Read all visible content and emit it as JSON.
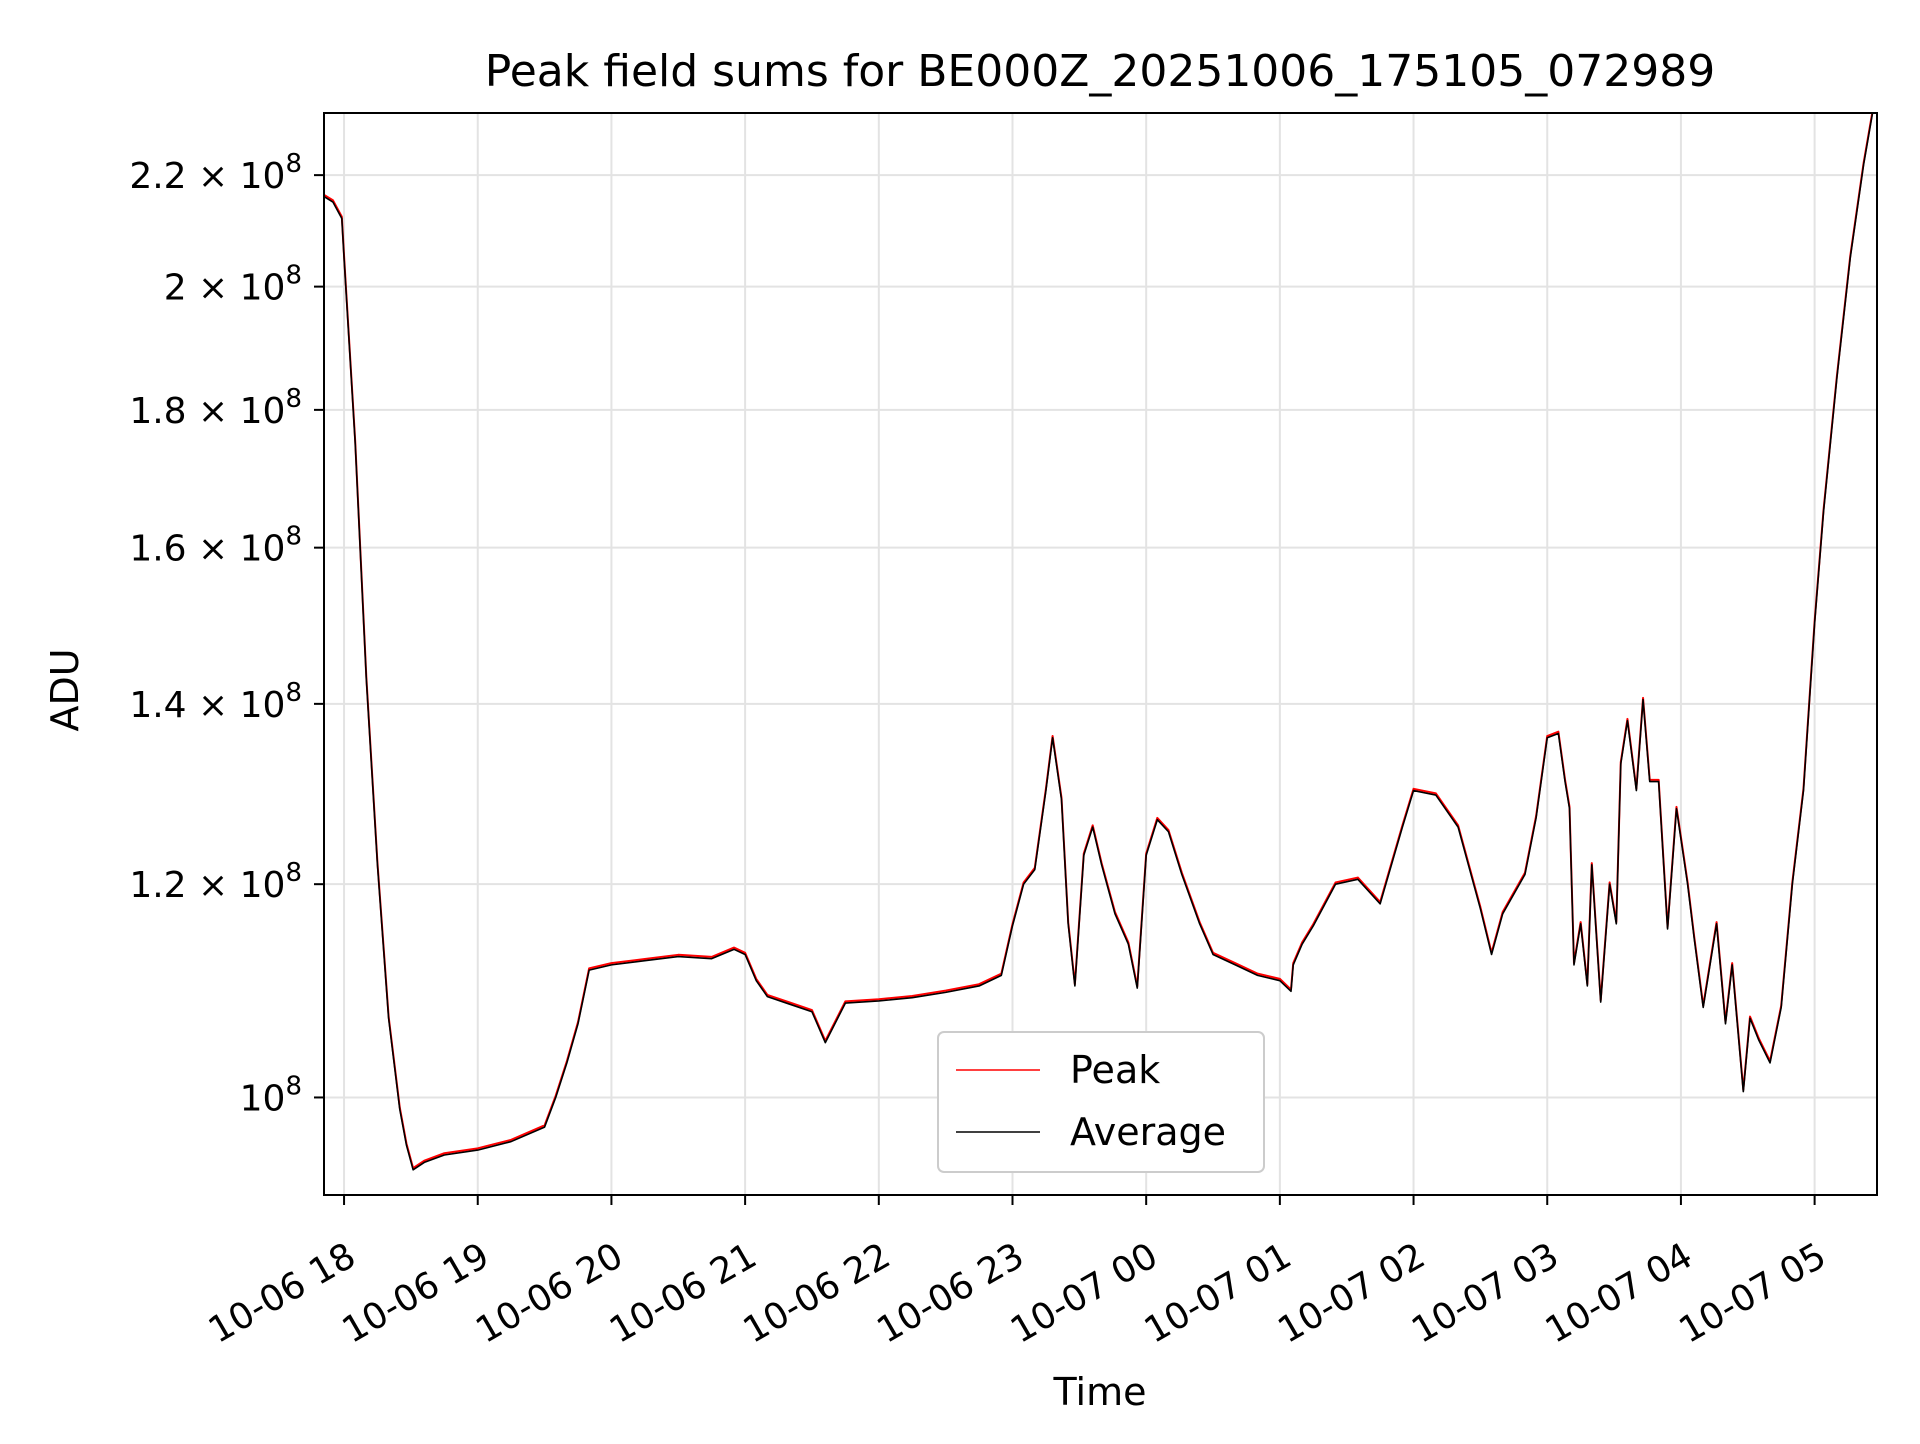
{
  "chart_data": {
    "type": "line",
    "title": "Peak field sums for BE000Z_20251006_175105_072989",
    "xlabel": "Time",
    "ylabel": "ADU",
    "y_scale": "log",
    "grid": true,
    "legend_placement": "lower center",
    "xlim": [
      "2025-10-06 17:51",
      "2025-10-07 05:28"
    ],
    "ylim": [
      92000000,
      232000000
    ],
    "x_ticks": [
      {
        "value": "2025-10-06 18:00",
        "label": "10-06 18"
      },
      {
        "value": "2025-10-06 19:00",
        "label": "10-06 19"
      },
      {
        "value": "2025-10-06 20:00",
        "label": "10-06 20"
      },
      {
        "value": "2025-10-06 21:00",
        "label": "10-06 21"
      },
      {
        "value": "2025-10-06 22:00",
        "label": "10-06 22"
      },
      {
        "value": "2025-10-06 23:00",
        "label": "10-06 23"
      },
      {
        "value": "2025-10-07 00:00",
        "label": "10-07 00"
      },
      {
        "value": "2025-10-07 01:00",
        "label": "10-07 01"
      },
      {
        "value": "2025-10-07 02:00",
        "label": "10-07 02"
      },
      {
        "value": "2025-10-07 03:00",
        "label": "10-07 03"
      },
      {
        "value": "2025-10-07 04:00",
        "label": "10-07 04"
      },
      {
        "value": "2025-10-07 05:00",
        "label": "10-07 05"
      }
    ],
    "y_ticks": [
      {
        "value": 100000000,
        "mant": "",
        "exp": "8",
        "label": "10^8"
      },
      {
        "value": 120000000,
        "mant": "1.2 × ",
        "exp": "8",
        "label": "1.2 × 10^8"
      },
      {
        "value": 140000000,
        "mant": "1.4 × ",
        "exp": "8",
        "label": "1.4 × 10^8"
      },
      {
        "value": 160000000,
        "mant": "1.6 × ",
        "exp": "8",
        "label": "1.6 × 10^8"
      },
      {
        "value": 180000000,
        "mant": "1.8 × ",
        "exp": "8",
        "label": "1.8 × 10^8"
      },
      {
        "value": 200000000,
        "mant": "2 × ",
        "exp": "8",
        "label": "2 × 10^8"
      },
      {
        "value": 220000000,
        "mant": "2.2 × ",
        "exp": "8",
        "label": "2.2 × 10^8"
      }
    ],
    "x": [
      "2025-10-06 17:51",
      "2025-10-06 17:55",
      "2025-10-06 17:59",
      "2025-10-06 18:00",
      "2025-10-06 18:05",
      "2025-10-06 18:10",
      "2025-10-06 18:15",
      "2025-10-06 18:20",
      "2025-10-06 18:25",
      "2025-10-06 18:28",
      "2025-10-06 18:31",
      "2025-10-06 18:36",
      "2025-10-06 18:45",
      "2025-10-06 19:00",
      "2025-10-06 19:15",
      "2025-10-06 19:30",
      "2025-10-06 19:35",
      "2025-10-06 19:40",
      "2025-10-06 19:45",
      "2025-10-06 19:50",
      "2025-10-06 20:00",
      "2025-10-06 20:15",
      "2025-10-06 20:30",
      "2025-10-06 20:45",
      "2025-10-06 20:55",
      "2025-10-06 21:00",
      "2025-10-06 21:05",
      "2025-10-06 21:10",
      "2025-10-06 21:20",
      "2025-10-06 21:30",
      "2025-10-06 21:36",
      "2025-10-06 21:45",
      "2025-10-06 22:00",
      "2025-10-06 22:15",
      "2025-10-06 22:30",
      "2025-10-06 22:45",
      "2025-10-06 22:55",
      "2025-10-06 23:00",
      "2025-10-06 23:05",
      "2025-10-06 23:10",
      "2025-10-06 23:15",
      "2025-10-06 23:18",
      "2025-10-06 23:22",
      "2025-10-06 23:25",
      "2025-10-06 23:28",
      "2025-10-06 23:32",
      "2025-10-06 23:36",
      "2025-10-06 23:40",
      "2025-10-06 23:46",
      "2025-10-06 23:52",
      "2025-10-06 23:56",
      "2025-10-07 00:00",
      "2025-10-07 00:05",
      "2025-10-07 00:10",
      "2025-10-07 00:16",
      "2025-10-07 00:24",
      "2025-10-07 00:30",
      "2025-10-07 00:40",
      "2025-10-07 00:50",
      "2025-10-07 01:00",
      "2025-10-07 01:05",
      "2025-10-07 01:06",
      "2025-10-07 01:10",
      "2025-10-07 01:15",
      "2025-10-07 01:25",
      "2025-10-07 01:35",
      "2025-10-07 01:45",
      "2025-10-07 01:55",
      "2025-10-07 02:00",
      "2025-10-07 02:10",
      "2025-10-07 02:20",
      "2025-10-07 02:30",
      "2025-10-07 02:35",
      "2025-10-07 02:40",
      "2025-10-07 02:50",
      "2025-10-07 02:55",
      "2025-10-07 03:00",
      "2025-10-07 03:05",
      "2025-10-07 03:08",
      "2025-10-07 03:10",
      "2025-10-07 03:12",
      "2025-10-07 03:15",
      "2025-10-07 03:18",
      "2025-10-07 03:20",
      "2025-10-07 03:24",
      "2025-10-07 03:28",
      "2025-10-07 03:31",
      "2025-10-07 03:33",
      "2025-10-07 03:36",
      "2025-10-07 03:40",
      "2025-10-07 03:43",
      "2025-10-07 03:46",
      "2025-10-07 03:50",
      "2025-10-07 03:54",
      "2025-10-07 03:58",
      "2025-10-07 04:03",
      "2025-10-07 04:06",
      "2025-10-07 04:10",
      "2025-10-07 04:16",
      "2025-10-07 04:20",
      "2025-10-07 04:23",
      "2025-10-07 04:28",
      "2025-10-07 04:31",
      "2025-10-07 04:35",
      "2025-10-07 04:40",
      "2025-10-07 04:45",
      "2025-10-07 04:50",
      "2025-10-07 04:55",
      "2025-10-07 05:00",
      "2025-10-07 05:04",
      "2025-10-07 05:10",
      "2025-10-07 05:16",
      "2025-10-07 05:22",
      "2025-10-07 05:26"
    ],
    "series": [
      {
        "name": "Peak",
        "color": "#ff0000",
        "offset_pct": 0.15
      },
      {
        "name": "Average",
        "color": "#000000",
        "values": [
          216000000,
          215000000,
          212000000,
          205000000,
          175000000,
          143000000,
          122000000,
          107000000,
          99000000,
          96000000,
          94000000,
          94600000,
          95200000,
          95600000,
          96300000,
          97500000,
          100000000,
          103000000,
          106500000,
          111500000,
          112000000,
          112400000,
          112800000,
          112600000,
          113500000,
          113000000,
          110500000,
          109000000,
          108300000,
          107600000,
          104800000,
          108400000,
          108600000,
          108900000,
          109400000,
          110000000,
          111000000,
          115800000,
          120000000,
          121500000,
          130000000,
          136000000,
          129000000,
          116000000,
          110000000,
          123000000,
          126000000,
          122000000,
          117000000,
          114000000,
          109800000,
          123000000,
          126800000,
          125500000,
          121000000,
          116000000,
          113000000,
          112000000,
          111000000,
          110500000,
          109500000,
          112000000,
          114000000,
          115800000,
          120000000,
          120500000,
          118000000,
          126000000,
          130000000,
          129500000,
          126000000,
          117500000,
          113000000,
          117000000,
          121000000,
          127000000,
          136000000,
          136500000,
          131000000,
          128000000,
          112000000,
          116000000,
          110000000,
          122000000,
          108500000,
          120000000,
          116000000,
          133000000,
          138000000,
          130000000,
          140500000,
          131000000,
          131000000,
          115500000,
          128000000,
          120000000,
          114500000,
          108000000,
          116000000,
          106500000,
          112000000,
          100500000,
          107000000,
          105000000,
          103000000,
          108000000,
          120000000,
          130000000,
          150000000,
          165000000,
          185000000,
          205000000,
          222000000,
          232000000
        ]
      }
    ]
  }
}
